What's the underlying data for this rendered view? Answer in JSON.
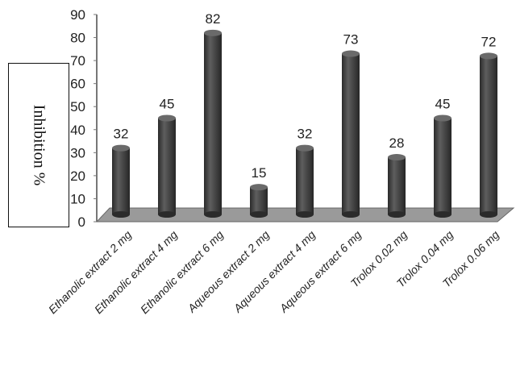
{
  "chart_data": {
    "type": "bar",
    "categories": [
      "Ethanolic extract 2 mg",
      "Ethanolic extract 4 mg",
      "Ethanolic extract 6 mg",
      "Aqueous extract 2 mg",
      "Aqueous extract 4 mg",
      "Aqueous extract 6 mg",
      "Trolox 0.02 mg",
      "Trolox 0.04 mg",
      "Trolox 0.06 mg"
    ],
    "values": [
      32,
      45,
      82,
      15,
      32,
      73,
      28,
      45,
      72
    ],
    "data_labels": [
      "32",
      "45",
      "82",
      "15",
      "32",
      "73",
      "28",
      "45",
      "72"
    ],
    "ylabel": "Inhibition %",
    "ylim": [
      0,
      90
    ],
    "yticks": [
      0,
      10,
      20,
      30,
      40,
      50,
      60,
      70,
      80,
      90
    ],
    "grid": false,
    "legend": "none",
    "style": "3d-cylinder",
    "bar_color": "#3c3c3c",
    "floor_color": "#9a9a9a"
  }
}
